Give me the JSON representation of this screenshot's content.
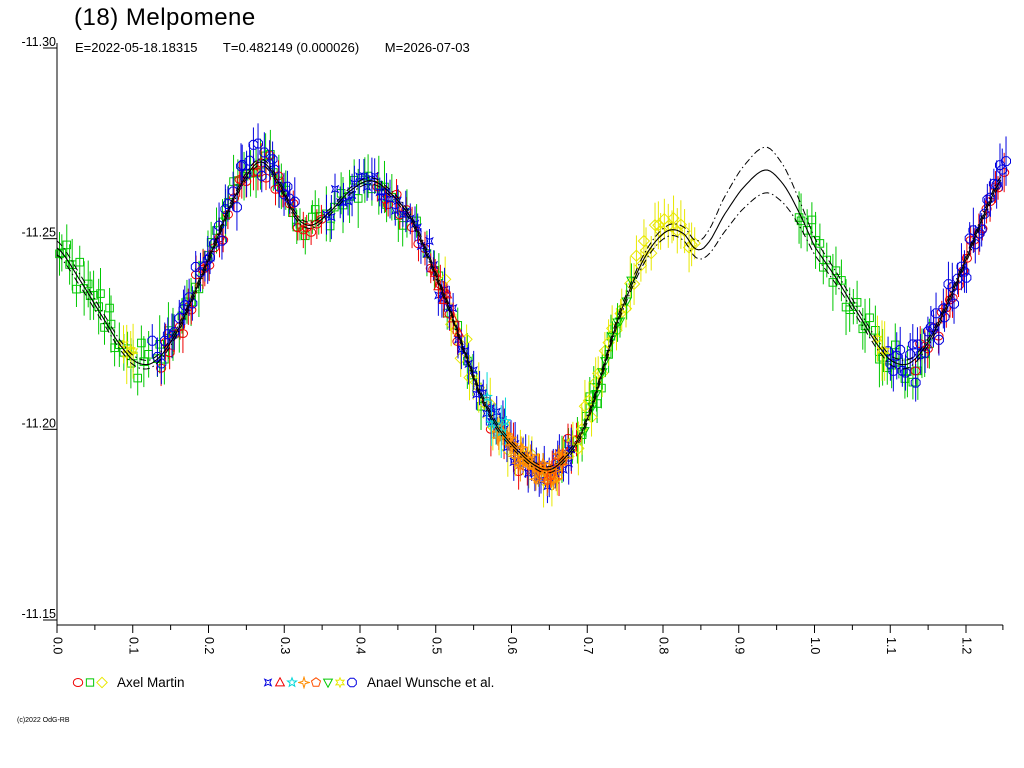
{
  "header": {
    "title": "(18) Melpomene",
    "ephemeris": "E=2022-05-18.18315",
    "period": "T=0.482149 (0.000026)",
    "map_date": "M=2026-07-03"
  },
  "footer": {
    "copyright": "(c)2022 OdG-RB"
  },
  "legend": {
    "groups": [
      {
        "label": "Axel Martin",
        "markers": [
          {
            "shape": "circle",
            "color": "#f00000"
          },
          {
            "shape": "square",
            "color": "#00c800"
          },
          {
            "shape": "diamond",
            "color": "#e8e800"
          }
        ]
      },
      {
        "label": "Anael Wunsche et al.",
        "markers": [
          {
            "shape": "xstar",
            "color": "#0000e0"
          },
          {
            "shape": "triangle-up",
            "color": "#f00000"
          },
          {
            "shape": "star5",
            "color": "#00d8d8"
          },
          {
            "shape": "star4",
            "color": "#ff8c00"
          },
          {
            "shape": "pentagon",
            "color": "#ff5000"
          },
          {
            "shape": "triangle-down",
            "color": "#00c800"
          },
          {
            "shape": "star6",
            "color": "#e8e800"
          },
          {
            "shape": "octagon",
            "color": "#0000e0"
          }
        ]
      }
    ]
  },
  "chart_data": {
    "type": "scatter",
    "title": "(18) Melpomene",
    "xlabel": "",
    "ylabel": "",
    "x_axis": {
      "min": 0.0,
      "max": 1.2487,
      "major_tick_step": 0.1,
      "minor_tick_step": 0.05,
      "major_tick_labels": [
        "0.0",
        "0.1",
        "0.2",
        "0.3",
        "0.4",
        "0.5",
        "0.6",
        "0.7",
        "0.8",
        "0.9",
        "1.0",
        "1.1",
        "1.2"
      ],
      "labels_rotated_deg": 90
    },
    "y_axis": {
      "min": -11.3,
      "max": -11.15,
      "inverted_magnitude": true,
      "tick_values": [
        -11.3,
        -11.25,
        -11.2,
        -11.15
      ],
      "tick_labels": [
        "-11.30",
        "-11.25",
        "-11.20",
        "-11.15"
      ]
    },
    "data_gap_phase": [
      0.845,
      0.975
    ],
    "fit_curve": {
      "color": "#000000",
      "center_style": "solid",
      "envelope_style": "dash-dot",
      "points": [
        [
          0.0,
          -11.2476,
          0.0018
        ],
        [
          0.03,
          -11.2392,
          0.0015
        ],
        [
          0.06,
          -11.2295,
          0.0013
        ],
        [
          0.09,
          -11.2205,
          0.0012
        ],
        [
          0.11,
          -11.2172,
          0.0012
        ],
        [
          0.13,
          -11.218,
          0.001
        ],
        [
          0.155,
          -11.2245,
          0.0009
        ],
        [
          0.18,
          -11.235,
          0.0008
        ],
        [
          0.205,
          -11.247,
          0.0008
        ],
        [
          0.23,
          -11.259,
          0.0008
        ],
        [
          0.255,
          -11.2678,
          0.0008
        ],
        [
          0.272,
          -11.27,
          0.0008
        ],
        [
          0.292,
          -11.2648,
          0.0008
        ],
        [
          0.315,
          -11.256,
          0.0008
        ],
        [
          0.335,
          -11.2535,
          0.0008
        ],
        [
          0.36,
          -11.257,
          0.0008
        ],
        [
          0.385,
          -11.2622,
          0.0008
        ],
        [
          0.412,
          -11.2652,
          0.0008
        ],
        [
          0.435,
          -11.2628,
          0.0008
        ],
        [
          0.466,
          -11.2558,
          0.0008
        ],
        [
          0.492,
          -11.2444,
          0.0008
        ],
        [
          0.519,
          -11.2313,
          0.0008
        ],
        [
          0.537,
          -11.2208,
          0.0008
        ],
        [
          0.558,
          -11.2096,
          0.0008
        ],
        [
          0.581,
          -11.2007,
          0.0008
        ],
        [
          0.607,
          -11.1946,
          0.0008
        ],
        [
          0.634,
          -11.1902,
          0.0008
        ],
        [
          0.652,
          -11.1895,
          0.0008
        ],
        [
          0.668,
          -11.192,
          0.0008
        ],
        [
          0.686,
          -11.1965,
          0.0008
        ],
        [
          0.703,
          -11.2043,
          0.0009
        ],
        [
          0.722,
          -11.2164,
          0.0009
        ],
        [
          0.739,
          -11.2279,
          0.001
        ],
        [
          0.756,
          -11.2366,
          0.001
        ],
        [
          0.774,
          -11.2444,
          0.0012
        ],
        [
          0.792,
          -11.2497,
          0.0013
        ],
        [
          0.81,
          -11.2523,
          0.0015
        ],
        [
          0.828,
          -11.2512,
          0.0018
        ],
        [
          0.843,
          -11.2473,
          0.0022
        ],
        [
          0.858,
          -11.2485,
          0.003
        ],
        [
          0.88,
          -11.256,
          0.0045
        ],
        [
          0.905,
          -11.2632,
          0.0055
        ],
        [
          0.935,
          -11.268,
          0.006
        ],
        [
          0.958,
          -11.2645,
          0.005
        ],
        [
          0.978,
          -11.2575,
          0.0035
        ],
        [
          1.0,
          -11.248,
          0.0022
        ],
        [
          1.03,
          -11.2392,
          0.0016
        ],
        [
          1.06,
          -11.2295,
          0.0013
        ],
        [
          1.09,
          -11.2205,
          0.0012
        ],
        [
          1.11,
          -11.2172,
          0.0012
        ],
        [
          1.13,
          -11.218,
          0.001
        ],
        [
          1.155,
          -11.2245,
          0.0009
        ],
        [
          1.18,
          -11.235,
          0.0009
        ],
        [
          1.205,
          -11.247,
          0.0009
        ],
        [
          1.23,
          -11.259,
          0.0009
        ],
        [
          1.249,
          -11.266,
          0.0009
        ]
      ]
    },
    "clusters": [
      {
        "observer": "Axel Martin",
        "marker": "square",
        "color": "#00c800",
        "phase_start": 0.0,
        "phase_end": 0.122,
        "n": 26,
        "mag_bias": -0.0008,
        "mag_scatter": 0.0038,
        "err_half": 0.006
      },
      {
        "observer": "Axel Martin",
        "marker": "square",
        "color": "#00c800",
        "phase_start": 0.128,
        "phase_end": 0.3,
        "n": 30,
        "mag_bias": -0.001,
        "mag_scatter": 0.0038,
        "err_half": 0.006
      },
      {
        "observer": "Axel Martin",
        "marker": "square",
        "color": "#00c800",
        "phase_start": 0.3,
        "phase_end": 0.465,
        "n": 26,
        "mag_bias": 0.0,
        "mag_scatter": 0.0036,
        "err_half": 0.006
      },
      {
        "observer": "Axel Martin",
        "marker": "square",
        "color": "#00c800",
        "phase_start": 0.47,
        "phase_end": 0.565,
        "n": 9,
        "mag_bias": 0.0,
        "mag_scatter": 0.003,
        "err_half": 0.0058
      },
      {
        "observer": "Axel Martin",
        "marker": "square",
        "color": "#00c800",
        "phase_start": 0.66,
        "phase_end": 0.735,
        "n": 13,
        "mag_bias": 0.0,
        "mag_scatter": 0.0028,
        "err_half": 0.0055
      },
      {
        "observer": "Axel Martin",
        "marker": "square",
        "color": "#00c800",
        "phase_start": 0.975,
        "phase_end": 1.155,
        "n": 32,
        "mag_bias": 0.0,
        "mag_scatter": 0.0034,
        "err_half": 0.006
      },
      {
        "observer": "Axel Martin",
        "marker": "circle",
        "color": "#f00000",
        "phase_start": 0.133,
        "phase_end": 0.352,
        "n": 36,
        "mag_bias": 0.0005,
        "mag_scatter": 0.003,
        "err_half": 0.0042
      },
      {
        "observer": "Axel Martin",
        "marker": "circle",
        "color": "#f00000",
        "phase_start": 0.42,
        "phase_end": 0.532,
        "n": 15,
        "mag_bias": 0.0008,
        "mag_scatter": 0.0028,
        "err_half": 0.0042
      },
      {
        "observer": "Axel Martin",
        "marker": "circle",
        "color": "#f00000",
        "phase_start": 0.56,
        "phase_end": 0.625,
        "n": 7,
        "mag_bias": 0.0,
        "mag_scatter": 0.0036,
        "err_half": 0.006
      },
      {
        "observer": "Axel Martin",
        "marker": "circle",
        "color": "#f00000",
        "phase_start": 0.652,
        "phase_end": 0.692,
        "n": 5,
        "mag_bias": 0.0,
        "mag_scatter": 0.0028,
        "err_half": 0.005
      },
      {
        "observer": "Axel Martin",
        "marker": "circle",
        "color": "#f00000",
        "phase_start": 1.132,
        "phase_end": 1.252,
        "n": 22,
        "mag_bias": 0.0,
        "mag_scatter": 0.003,
        "err_half": 0.0042
      },
      {
        "observer": "Axel Martin",
        "marker": "diamond",
        "color": "#e8e800",
        "phase_start": 0.51,
        "phase_end": 0.69,
        "n": 28,
        "mag_bias": 0.0005,
        "mag_scatter": 0.0035,
        "err_half": 0.0055
      },
      {
        "observer": "Axel Martin",
        "marker": "diamond",
        "color": "#e8e800",
        "phase_start": 0.69,
        "phase_end": 0.845,
        "n": 34,
        "mag_bias": -0.0005,
        "mag_scatter": 0.0035,
        "err_half": 0.0055
      },
      {
        "observer": "Anael Wunsche et al.",
        "marker": "octagon",
        "color": "#0000e0",
        "phase_start": 0.125,
        "phase_end": 0.315,
        "n": 40,
        "mag_bias": -0.0015,
        "mag_scatter": 0.004,
        "err_half": 0.005
      },
      {
        "observer": "Anael Wunsche et al.",
        "marker": "octagon",
        "color": "#0000e0",
        "phase_start": 1.095,
        "phase_end": 1.255,
        "n": 40,
        "mag_bias": -0.0005,
        "mag_scatter": 0.004,
        "err_half": 0.005
      },
      {
        "observer": "Anael Wunsche et al.",
        "marker": "xstar",
        "color": "#0000e0",
        "phase_start": 0.355,
        "phase_end": 0.562,
        "n": 40,
        "mag_bias": 0.0,
        "mag_scatter": 0.003,
        "err_half": 0.0045
      },
      {
        "observer": "Anael Wunsche et al.",
        "marker": "xstar",
        "color": "#0000e0",
        "phase_start": 0.562,
        "phase_end": 0.68,
        "n": 34,
        "mag_bias": 0.0005,
        "mag_scatter": 0.0028,
        "err_half": 0.0045
      },
      {
        "observer": "Anael Wunsche et al.",
        "marker": "star4",
        "color": "#ff8c00",
        "phase_start": 0.58,
        "phase_end": 0.672,
        "n": 40,
        "mag_bias": 0.0005,
        "mag_scatter": 0.0022,
        "err_half": 0.0032
      },
      {
        "observer": "Anael Wunsche et al.",
        "marker": "star5",
        "color": "#00d8d8",
        "phase_start": 0.565,
        "phase_end": 0.594,
        "n": 5,
        "mag_bias": 0.0,
        "mag_scatter": 0.003,
        "err_half": 0.0075
      },
      {
        "observer": "Anael Wunsche et al.",
        "marker": "star6",
        "color": "#e8e800",
        "phase_start": 0.086,
        "phase_end": 0.102,
        "n": 4,
        "mag_bias": 0.0,
        "mag_scatter": 0.0018,
        "err_half": 0.0065
      },
      {
        "observer": "Anael Wunsche et al.",
        "marker": "star6",
        "color": "#e8e800",
        "phase_start": 1.082,
        "phase_end": 1.096,
        "n": 3,
        "mag_bias": 0.0,
        "mag_scatter": 0.0018,
        "err_half": 0.0065
      },
      {
        "observer": "Anael Wunsche et al.",
        "marker": "triangle-down",
        "color": "#00c800",
        "phase_start": 0.695,
        "phase_end": 0.762,
        "n": 10,
        "mag_bias": 0.0,
        "mag_scatter": 0.002,
        "err_half": 0.004
      },
      {
        "observer": "Anael Wunsche et al.",
        "marker": "triangle-up",
        "color": "#f00000",
        "phase_start": 0.495,
        "phase_end": 0.532,
        "n": 6,
        "mag_bias": 0.0,
        "mag_scatter": 0.0022,
        "err_half": 0.004
      },
      {
        "observer": "Anael Wunsche et al.",
        "marker": "pentagon",
        "color": "#ff5000",
        "phase_start": 0.635,
        "phase_end": 0.67,
        "n": 5,
        "mag_bias": 0.0,
        "mag_scatter": 0.0018,
        "err_half": 0.0035
      }
    ]
  }
}
